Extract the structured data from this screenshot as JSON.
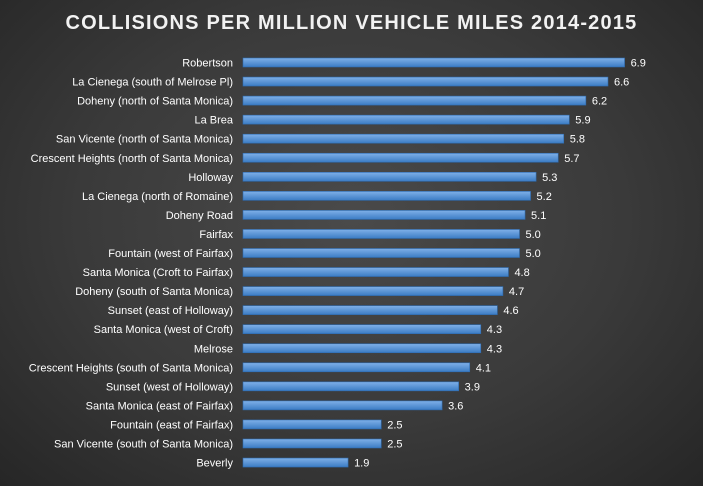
{
  "chart_data": {
    "type": "bar",
    "orientation": "horizontal",
    "title": "COLLISIONS PER MILLION VEHICLE MILES 2014-2015",
    "xlabel": "",
    "ylabel": "",
    "grid": false,
    "legend": "none",
    "xlim": [
      0,
      7.5
    ],
    "categories": [
      "Robertson",
      "La Cienega (south of Melrose Pl)",
      "Doheny (north of Santa Monica)",
      "La Brea",
      "San Vicente (north of Santa Monica)",
      "Crescent Heights (north of Santa Monica)",
      "Holloway",
      "La Cienega (north of Romaine)",
      "Doheny Road",
      "Fairfax",
      "Fountain (west of Fairfax)",
      "Santa Monica (Croft to Fairfax)",
      "Doheny (south of Santa Monica)",
      "Sunset (east of Holloway)",
      "Santa Monica (west of Croft)",
      "Melrose",
      "Crescent Heights (south of Santa Monica)",
      "Sunset (west of Holloway)",
      "Santa Monica (east of Fairfax)",
      "Fountain (east of Fairfax)",
      "San Vicente (south of Santa Monica)",
      "Beverly"
    ],
    "values": [
      6.9,
      6.6,
      6.2,
      5.9,
      5.8,
      5.7,
      5.3,
      5.2,
      5.1,
      5.0,
      5.0,
      4.8,
      4.7,
      4.6,
      4.3,
      4.3,
      4.1,
      3.9,
      3.6,
      2.5,
      2.5,
      1.9
    ],
    "value_labels": [
      "6.9",
      "6.6",
      "6.2",
      "5.9",
      "5.8",
      "5.7",
      "5.3",
      "5.2",
      "5.1",
      "5.0",
      "5.0",
      "4.8",
      "4.7",
      "4.6",
      "4.3",
      "4.3",
      "4.1",
      "3.9",
      "3.6",
      "2.5",
      "2.5",
      "1.9"
    ],
    "colors": {
      "bar_top": "#7fb0e8",
      "bar_bottom": "#3b7cc4",
      "bar_stroke": "#2e6bb0",
      "text": "#ffffff",
      "background_center": "#4a4a4a",
      "background_edge": "#262626"
    }
  }
}
